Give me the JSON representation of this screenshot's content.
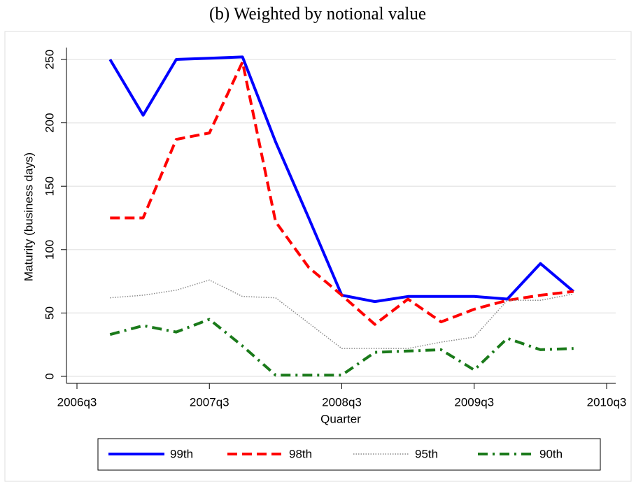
{
  "chart_data": {
    "type": "line",
    "title": "(b) Weighted by notional value",
    "xlabel": "Quarter",
    "ylabel": "Maturity (business days)",
    "x": [
      "2006q4",
      "2007q1",
      "2007q2",
      "2007q3",
      "2007q4",
      "2008q1",
      "2008q2",
      "2008q3",
      "2008q4",
      "2009q1",
      "2009q2",
      "2009q3",
      "2009q4",
      "2010q1",
      "2010q2"
    ],
    "xlim": [
      "2006q3",
      "2010q3"
    ],
    "xticks": [
      "2006q3",
      "2007q3",
      "2008q3",
      "2009q3",
      "2010q3"
    ],
    "ylim": [
      0,
      250
    ],
    "yticks": [
      0,
      50,
      100,
      150,
      200,
      250
    ],
    "grid": true,
    "legend": "bottom",
    "series": [
      {
        "name": "99th",
        "color": "#0000ff",
        "style": "solid",
        "values": [
          250,
          206,
          250,
          251,
          252,
          185,
          125,
          64,
          59,
          63,
          63,
          63,
          61,
          89,
          67
        ]
      },
      {
        "name": "98th",
        "color": "#ff0000",
        "style": "dash",
        "values": [
          125,
          125,
          187,
          192,
          248,
          122,
          86,
          64,
          41,
          61,
          43,
          53,
          60,
          64,
          67
        ]
      },
      {
        "name": "95th",
        "color": "#8a8a8a",
        "style": "dot",
        "values": [
          62,
          64,
          68,
          76,
          63,
          62,
          42,
          22,
          22,
          22,
          27,
          31,
          60,
          60,
          65
        ]
      },
      {
        "name": "90th",
        "color": "#1a7a1a",
        "style": "dashdot",
        "values": [
          33,
          40,
          35,
          45,
          24,
          1,
          1,
          1,
          19,
          20,
          21,
          5,
          30,
          21,
          22
        ]
      }
    ]
  }
}
